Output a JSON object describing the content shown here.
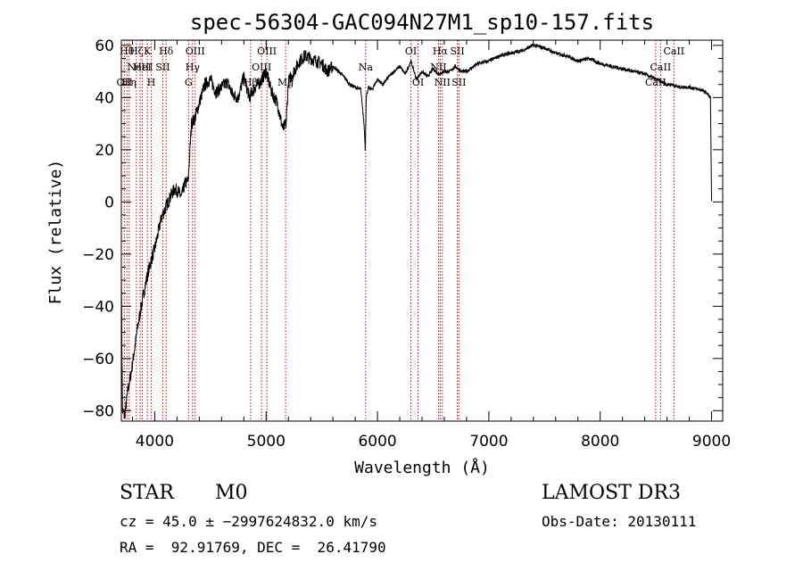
{
  "chart_data": {
    "type": "line",
    "title": "spec-56304-GAC094N27M1_sp10-157.fits",
    "xlabel": "Wavelength (Å)",
    "ylabel": "Flux (relative)",
    "xlim": [
      3700,
      9100
    ],
    "ylim": [
      -84,
      62
    ],
    "x_ticks": [
      4000,
      5000,
      6000,
      7000,
      8000,
      9000
    ],
    "y_ticks": [
      -80,
      -60,
      -40,
      -20,
      0,
      20,
      40,
      60
    ],
    "grid": false,
    "series": [
      {
        "color": "#000000",
        "x": [
          3700,
          3710,
          3730,
          3760,
          3790,
          3820,
          3850,
          3880,
          3910,
          3940,
          3970,
          4000,
          4030,
          4060,
          4090,
          4120,
          4150,
          4180,
          4210,
          4240,
          4270,
          4300,
          4330,
          4360,
          4400,
          4450,
          4500,
          4550,
          4600,
          4650,
          4700,
          4750,
          4800,
          4850,
          4900,
          4950,
          5000,
          5050,
          5100,
          5150,
          5180,
          5200,
          5250,
          5300,
          5350,
          5400,
          5450,
          5500,
          5550,
          5600,
          5650,
          5700,
          5750,
          5800,
          5850,
          5880,
          5890,
          5900,
          5920,
          5950,
          6000,
          6050,
          6100,
          6150,
          6200,
          6250,
          6300,
          6350,
          6400,
          6450,
          6500,
          6550,
          6600,
          6650,
          6700,
          6750,
          6800,
          6900,
          7000,
          7100,
          7200,
          7300,
          7400,
          7500,
          7600,
          7700,
          7800,
          7900,
          8000,
          8100,
          8200,
          8300,
          8400,
          8450,
          8500,
          8550,
          8600,
          8650,
          8700,
          8800,
          8900,
          8950,
          8990,
          9000
        ],
        "y": [
          -25,
          -80,
          -82,
          -72,
          -65,
          -56,
          -47,
          -40,
          -33,
          -27,
          -22,
          -18,
          -12,
          -6,
          -3,
          0,
          3,
          5,
          4,
          2,
          7,
          8,
          30,
          32,
          38,
          45,
          47,
          42,
          44,
          46,
          41,
          40,
          48,
          40,
          44,
          46,
          50,
          42,
          38,
          28,
          30,
          46,
          50,
          54,
          56,
          55,
          54,
          53,
          50,
          52,
          50,
          48,
          45,
          44,
          43,
          30,
          20,
          40,
          44,
          43,
          47,
          45,
          48,
          50,
          52,
          49,
          54,
          47,
          50,
          48,
          51,
          49,
          50,
          50,
          52,
          50,
          50,
          53,
          54,
          56,
          57,
          58,
          60,
          59,
          57,
          56,
          54,
          55,
          53,
          52,
          51,
          50,
          49,
          48,
          47,
          46,
          45,
          45,
          44,
          44,
          43,
          42,
          40,
          0
        ]
      }
    ],
    "line_markers": [
      {
        "x": 3727,
        "labels": [
          "OII"
        ],
        "row": 2
      },
      {
        "x": 3750,
        "labels": [
          "Hθ"
        ],
        "row": 0
      },
      {
        "x": 3770,
        "labels": [
          "Hη"
        ],
        "row": 2
      },
      {
        "x": 3835,
        "labels": [
          "Hζ"
        ],
        "row": 0
      },
      {
        "x": 3869,
        "labels": [
          "NeIII"
        ],
        "row": 1
      },
      {
        "x": 3889,
        "labels": [
          "HeI"
        ],
        "row": 1
      },
      {
        "x": 3934,
        "labels": [
          "K"
        ],
        "row": 0
      },
      {
        "x": 3969,
        "labels": [
          "H"
        ],
        "row": 2
      },
      {
        "x": 4072,
        "labels": [
          "SII"
        ],
        "row": 1
      },
      {
        "x": 4102,
        "labels": [
          "Hδ"
        ],
        "row": 0
      },
      {
        "x": 4304,
        "labels": [
          "G"
        ],
        "row": 2
      },
      {
        "x": 4340,
        "labels": [
          "Hγ"
        ],
        "row": 1
      },
      {
        "x": 4363,
        "labels": [
          "OIII"
        ],
        "row": 0
      },
      {
        "x": 4861,
        "labels": [
          "Hβ"
        ],
        "row": 2
      },
      {
        "x": 4959,
        "labels": [
          "OIII"
        ],
        "row": 1
      },
      {
        "x": 5007,
        "labels": [
          "OIII"
        ],
        "row": 0
      },
      {
        "x": 5175,
        "labels": [
          "Mg"
        ],
        "row": 2
      },
      {
        "x": 5894,
        "labels": [
          "Na"
        ],
        "row": 1
      },
      {
        "x": 6300,
        "labels": [
          "OI"
        ],
        "row": 0
      },
      {
        "x": 6364,
        "labels": [
          "OI"
        ],
        "row": 2
      },
      {
        "x": 6548,
        "labels": [
          "NII"
        ],
        "row": 1
      },
      {
        "x": 6563,
        "labels": [
          "Hα"
        ],
        "row": 0
      },
      {
        "x": 6583,
        "labels": [
          "NII"
        ],
        "row": 2
      },
      {
        "x": 6717,
        "labels": [
          "SII"
        ],
        "row": 0
      },
      {
        "x": 6731,
        "labels": [
          "SII"
        ],
        "row": 2
      },
      {
        "x": 8498,
        "labels": [
          "CaII"
        ],
        "row": 2
      },
      {
        "x": 8542,
        "labels": [
          "CaII"
        ],
        "row": 1
      },
      {
        "x": 8662,
        "labels": [
          "CaII"
        ],
        "row": 0
      }
    ]
  },
  "info": {
    "object_class": "STAR",
    "subclass": "M0",
    "survey": "LAMOST DR3",
    "redshift_line": "cz = 45.0 ± −2997624832.0 km/s",
    "obs_date": "Obs-Date: 20130111",
    "coords": "RA =  92.91769, DEC =  26.41790"
  },
  "colors": {
    "spectrum": "#000000",
    "marker_lines": "#cc0000",
    "background": "#ffffff"
  }
}
